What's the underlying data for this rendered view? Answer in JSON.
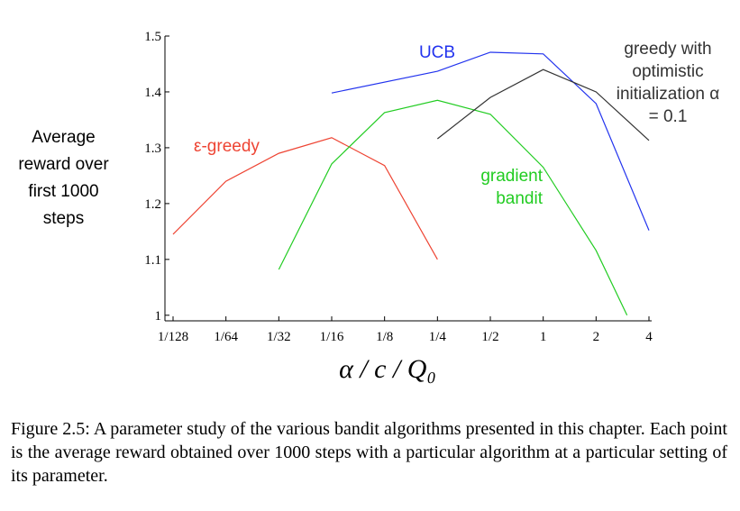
{
  "chart_data": {
    "type": "line",
    "ylabel": "Average reward over first 1000 steps",
    "xlabel": "α / c / Q₀",
    "caption": "Figure 2.5: A parameter study of the various bandit algorithms presented in this chapter. Each point is the average reward obtained over 1000 steps with a particular algorithm at a particular setting of its parameter.",
    "xscale": "log",
    "xlim": [
      0.0078125,
      4
    ],
    "xticks": [
      {
        "value": 0.0078125,
        "label": "1/128"
      },
      {
        "value": 0.015625,
        "label": "1/64"
      },
      {
        "value": 0.03125,
        "label": "1/32"
      },
      {
        "value": 0.0625,
        "label": "1/16"
      },
      {
        "value": 0.125,
        "label": "1/8"
      },
      {
        "value": 0.25,
        "label": "1/4"
      },
      {
        "value": 0.5,
        "label": "1/2"
      },
      1,
      2,
      4
    ],
    "ylim": [
      0.99,
      1.5
    ],
    "yticks": [
      1,
      1.1,
      1.2,
      1.3,
      1.4,
      1.5
    ],
    "series": [
      {
        "name": "ε-greedy",
        "color": "#ee4433",
        "x": [
          0.0078125,
          0.015625,
          0.03125,
          0.0625,
          0.125,
          0.25
        ],
        "values": [
          1.145,
          1.24,
          1.29,
          1.318,
          1.268,
          1.1
        ]
      },
      {
        "name": "UCB",
        "color": "#2233ee",
        "x": [
          0.0625,
          0.25,
          0.5,
          1,
          2,
          4
        ],
        "values": [
          1.398,
          1.437,
          1.471,
          1.468,
          1.379,
          1.152
        ]
      },
      {
        "name": "gradient bandit",
        "color": "#22cc22",
        "x": [
          0.03125,
          0.0625,
          0.125,
          0.25,
          0.5,
          1,
          2,
          3
        ],
        "values": [
          1.082,
          1.271,
          1.363,
          1.385,
          1.36,
          1.265,
          1.116,
          1.0
        ]
      },
      {
        "name": "greedy with optimistic initialization α = 0.1",
        "color": "#333333",
        "x": [
          0.25,
          0.5,
          1,
          2,
          4
        ],
        "values": [
          1.316,
          1.39,
          1.44,
          1.4,
          1.313
        ]
      }
    ]
  }
}
